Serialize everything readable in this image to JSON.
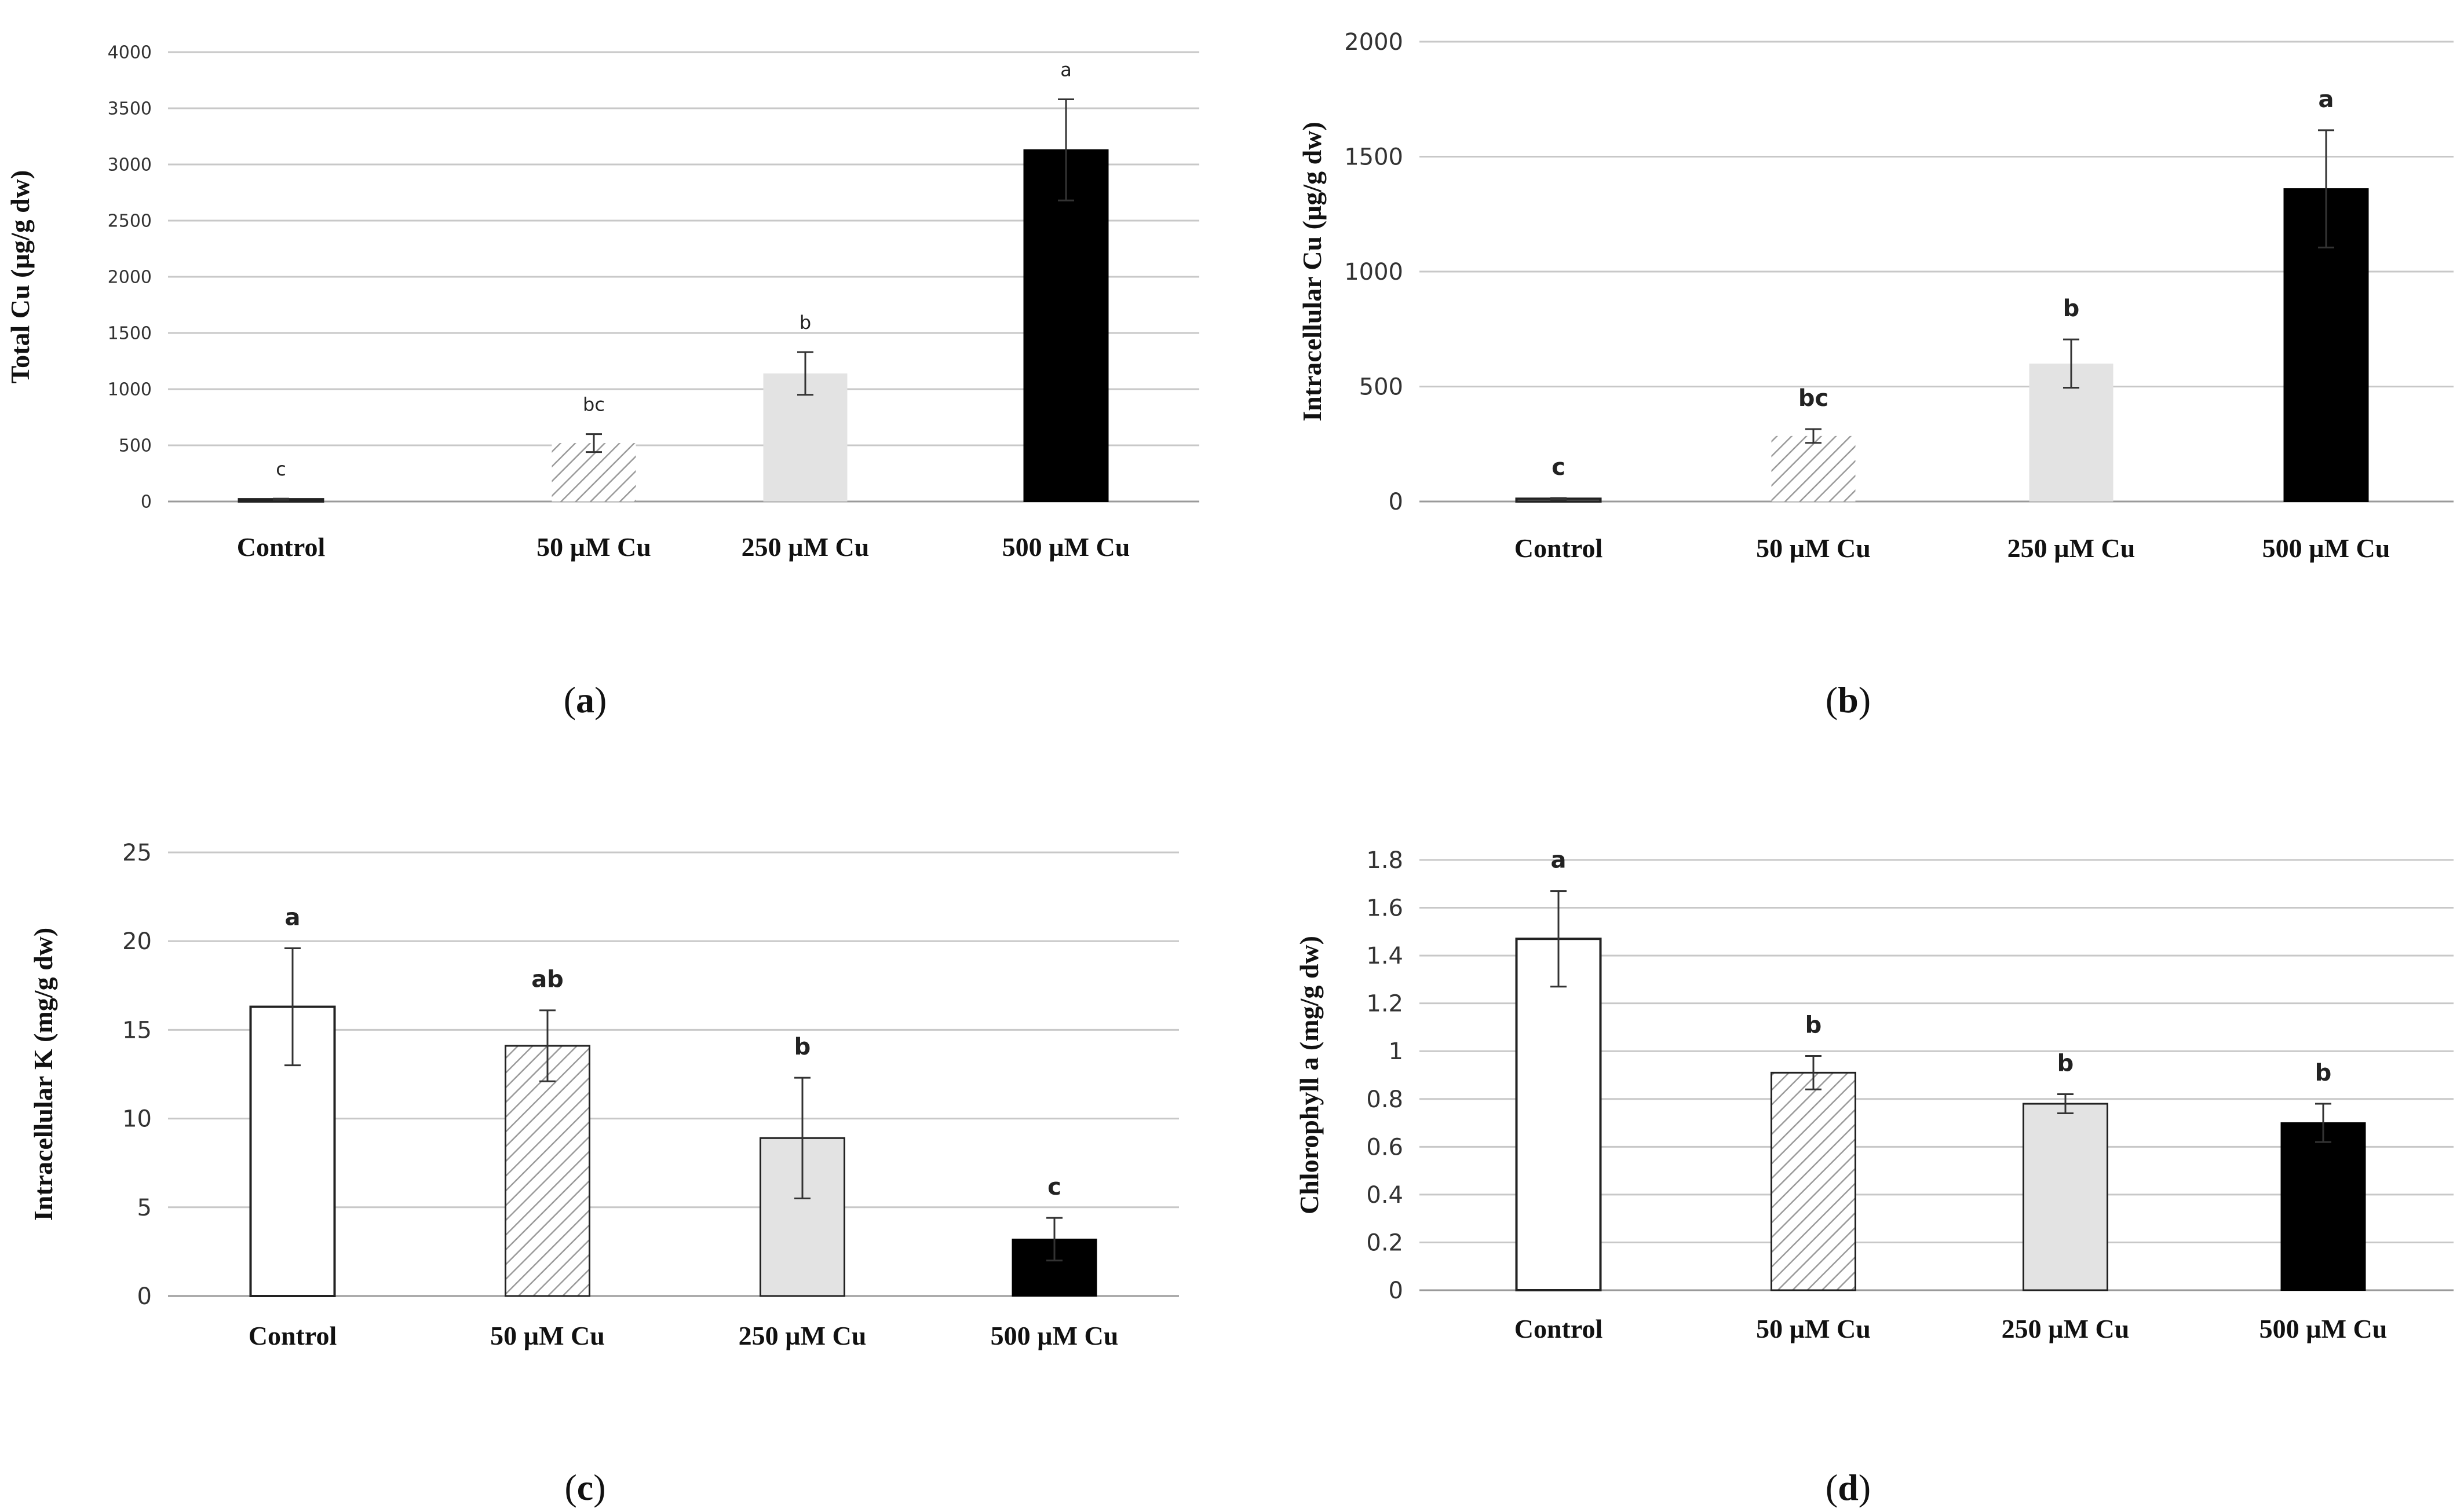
{
  "colors": {
    "grid": "#c8c8c8",
    "baseline": "#9a9a9a",
    "bar_stroke": "#222222",
    "control_fill": "#ffffff",
    "cu50_hatch": "#9a9a9a",
    "cu250_fill": "#e3e3e3",
    "cu500_fill": "#000000"
  },
  "chart_data": [
    {
      "type": "bar",
      "panel": "a",
      "caption_letter": "a",
      "categories": [
        "Control",
        "50 µM Cu",
        "250 µM Cu",
        "500 µM Cu"
      ],
      "values": [
        20,
        520,
        1140,
        3130
      ],
      "errors": [
        5,
        80,
        190,
        450
      ],
      "significance": [
        "c",
        "bc",
        "b",
        "a"
      ],
      "ylabel": "Total Cu (µg/g dw)",
      "ylim": [
        0,
        4000
      ],
      "yticks": [
        0,
        500,
        1000,
        1500,
        2000,
        2500,
        3000,
        3500,
        4000
      ],
      "ytick_labels": [
        "0",
        "500",
        "1000",
        "1500",
        "2000",
        "2500",
        "3000",
        "3500",
        "4000"
      ],
      "grid": true
    },
    {
      "type": "bar",
      "panel": "b",
      "caption_letter": "b",
      "categories": [
        "Control",
        "50 µM Cu",
        "250 µM Cu",
        "500 µM Cu"
      ],
      "values": [
        12,
        285,
        600,
        1360
      ],
      "errors": [
        3,
        30,
        105,
        255
      ],
      "significance": [
        "c",
        "bc",
        "b",
        "a"
      ],
      "ylabel": "Intracellular Cu (µg/g dw)",
      "ylim": [
        0,
        2000
      ],
      "yticks": [
        0,
        500,
        1000,
        1500,
        2000
      ],
      "ytick_labels": [
        "0",
        "500",
        "1000",
        "1500",
        "2000"
      ],
      "grid": true
    },
    {
      "type": "bar",
      "panel": "c",
      "caption_letter": "c",
      "categories": [
        "Control",
        "50 µM Cu",
        "250 µM Cu",
        "500 µM Cu"
      ],
      "values": [
        16.3,
        14.1,
        8.9,
        3.2
      ],
      "errors": [
        3.3,
        2.0,
        3.4,
        1.2
      ],
      "significance": [
        "a",
        "ab",
        "b",
        "c"
      ],
      "ylabel": "Intracellular K (mg/g dw)",
      "ylim": [
        0,
        25
      ],
      "yticks": [
        0,
        5,
        10,
        15,
        20,
        25
      ],
      "ytick_labels": [
        "0",
        "5",
        "10",
        "15",
        "20",
        "25"
      ],
      "grid": true
    },
    {
      "type": "bar",
      "panel": "d",
      "caption_letter": "d",
      "categories": [
        "Control",
        "50 µM Cu",
        "250 µM Cu",
        "500 µM Cu"
      ],
      "values": [
        1.47,
        0.91,
        0.78,
        0.7
      ],
      "errors": [
        0.2,
        0.07,
        0.04,
        0.08
      ],
      "significance": [
        "a",
        "b",
        "b",
        "b"
      ],
      "ylabel": "Chlorophyll  a  (mg/g dw)",
      "ylim": [
        0,
        1.8
      ],
      "yticks": [
        0,
        0.2,
        0.4,
        0.6,
        0.8,
        1.0,
        1.2,
        1.4,
        1.6,
        1.8
      ],
      "ytick_labels": [
        "0",
        "0.2",
        "0.4",
        "0.6",
        "0.8",
        "1",
        "1.2",
        "1.4",
        "1.6",
        "1.8"
      ],
      "grid": true
    }
  ]
}
